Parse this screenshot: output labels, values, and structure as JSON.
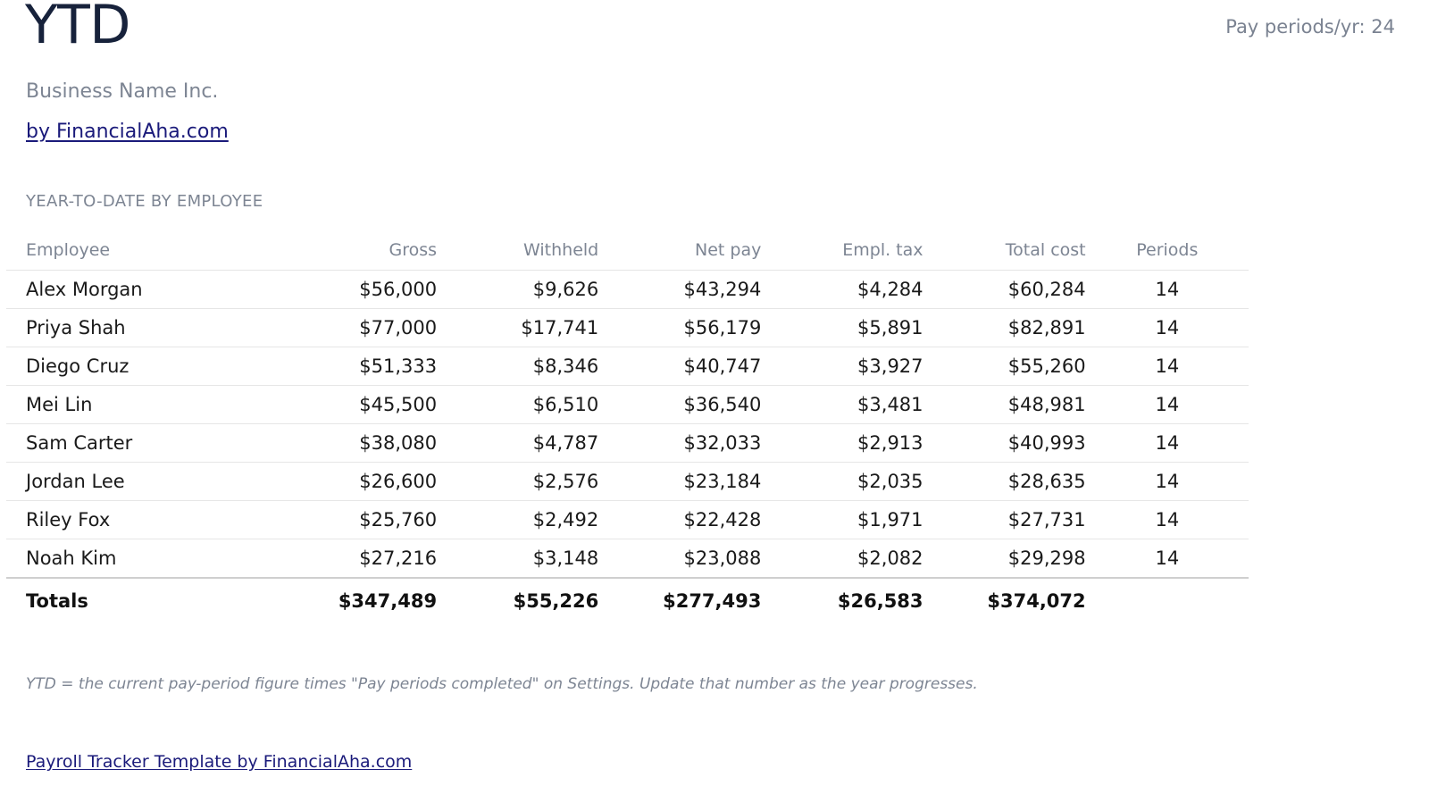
{
  "header": {
    "title": "YTD",
    "periods_per_year": "Pay periods/yr: 24",
    "business_name": "Business Name Inc.",
    "byline": "by FinancialAha.com"
  },
  "section": {
    "title": "YEAR-TO-DATE BY EMPLOYEE"
  },
  "table": {
    "headers": [
      "Employee",
      "Gross",
      "Withheld",
      "Net pay",
      "Empl. tax",
      "Total cost",
      "Periods"
    ],
    "rows": [
      [
        "Alex Morgan",
        "$56,000",
        "$9,626",
        "$43,294",
        "$4,284",
        "$60,284",
        "14"
      ],
      [
        "Priya Shah",
        "$77,000",
        "$17,741",
        "$56,179",
        "$5,891",
        "$82,891",
        "14"
      ],
      [
        "Diego Cruz",
        "$51,333",
        "$8,346",
        "$40,747",
        "$3,927",
        "$55,260",
        "14"
      ],
      [
        "Mei Lin",
        "$45,500",
        "$6,510",
        "$36,540",
        "$3,481",
        "$48,981",
        "14"
      ],
      [
        "Sam Carter",
        "$38,080",
        "$4,787",
        "$32,033",
        "$2,913",
        "$40,993",
        "14"
      ],
      [
        "Jordan Lee",
        "$26,600",
        "$2,576",
        "$23,184",
        "$2,035",
        "$28,635",
        "14"
      ],
      [
        "Riley Fox",
        "$25,760",
        "$2,492",
        "$22,428",
        "$1,971",
        "$27,731",
        "14"
      ],
      [
        "Noah Kim",
        "$27,216",
        "$3,148",
        "$23,088",
        "$2,082",
        "$29,298",
        "14"
      ]
    ],
    "totals": [
      "Totals",
      "$347,489",
      "$55,226",
      "$277,493",
      "$26,583",
      "$374,072",
      ""
    ]
  },
  "note": "YTD = the current pay-period figure times \"Pay periods completed\" on Settings. Update that number as the year progresses.",
  "footer": {
    "link_text": "Payroll Tracker Template by FinancialAha.com"
  },
  "colors": {
    "title": "#17223b",
    "muted": "#7d8593",
    "link": "#1a1a7a"
  }
}
